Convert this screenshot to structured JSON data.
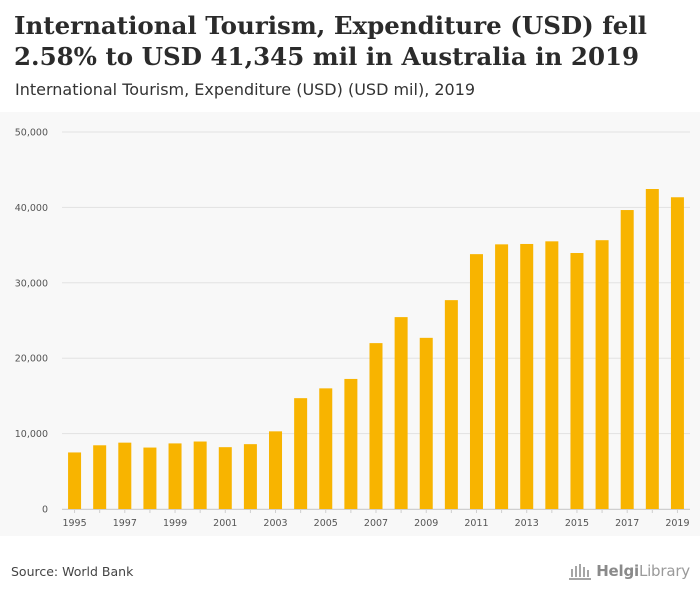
{
  "header": {
    "title": "International Tourism, Expenditure (USD) fell 2.58% to USD 41,345 mil in Australia in 2019",
    "subtitle": "International Tourism, Expenditure (USD) (USD mil), 2019"
  },
  "footer": {
    "source": "Source: World Bank",
    "logo_strong": "Helgi",
    "logo_light": "Library"
  },
  "colors": {
    "bar": "#f8b400",
    "grid": "#e2e2e2",
    "panel": "#f8f8f8"
  },
  "chart_data": {
    "type": "bar",
    "title": "International Tourism, Expenditure (USD) (USD mil)",
    "xlabel": "",
    "ylabel": "",
    "ylim": [
      0,
      50000
    ],
    "yticks": [
      0,
      10000,
      20000,
      30000,
      40000,
      50000
    ],
    "ytick_labels": [
      "0",
      "10,000",
      "20,000",
      "30,000",
      "40,000",
      "50,000"
    ],
    "grid": true,
    "categories": [
      "1995",
      "1996",
      "1997",
      "1998",
      "1999",
      "2000",
      "2001",
      "2002",
      "2003",
      "2004",
      "2005",
      "2006",
      "2007",
      "2008",
      "2009",
      "2010",
      "2011",
      "2012",
      "2013",
      "2014",
      "2015",
      "2016",
      "2017",
      "2018",
      "2019"
    ],
    "xtick_labels": [
      "1995",
      "1997",
      "1999",
      "2001",
      "2003",
      "2005",
      "2007",
      "2009",
      "2011",
      "2013",
      "2015",
      "2017",
      "2019"
    ],
    "values": [
      7500,
      8450,
      8800,
      8150,
      8700,
      8950,
      8200,
      8600,
      10300,
      14700,
      16000,
      17250,
      22000,
      25450,
      22700,
      27700,
      33800,
      35100,
      35150,
      35500,
      33950,
      35650,
      39650,
      42440,
      41345
    ]
  }
}
